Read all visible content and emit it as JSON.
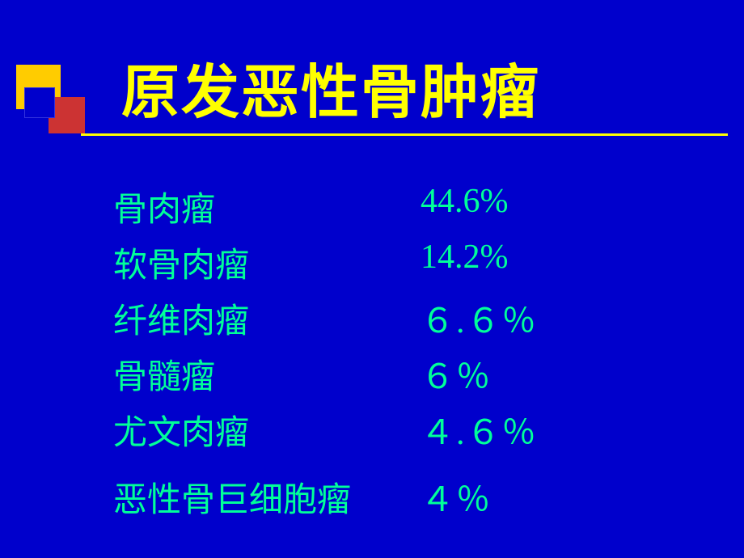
{
  "slide": {
    "title": "原发恶性骨肿瘤",
    "background_color": "#0000cc",
    "title_color": "#ffff00",
    "text_color": "#00ff99",
    "title_fontsize": 72,
    "content_fontsize": 42,
    "decoration": {
      "square1_color": "#ffcc00",
      "square2_color": "#cc3333",
      "square3_color": "#0000cc"
    },
    "rows": [
      {
        "label": "骨肉瘤",
        "value": "44.6%"
      },
      {
        "label": "软骨肉瘤",
        "value": "14.2%"
      },
      {
        "label": "纤维肉瘤",
        "value": "６.６％"
      },
      {
        "label": "骨髓瘤",
        "value": "６％"
      },
      {
        "label": "尤文肉瘤",
        "value": "４.６％"
      },
      {
        "label": "恶性骨巨细胞瘤",
        "value": "４％"
      }
    ]
  }
}
